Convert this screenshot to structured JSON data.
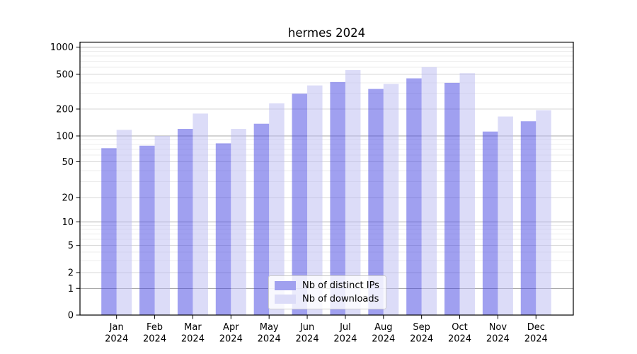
{
  "chart_data": {
    "type": "bar",
    "title": "hermes 2024",
    "categories": [
      "Jan 2024",
      "Feb 2024",
      "Mar 2024",
      "Apr 2024",
      "May 2024",
      "Jun 2024",
      "Jul 2024",
      "Aug 2024",
      "Sep 2024",
      "Oct 2024",
      "Nov 2024",
      "Dec 2024"
    ],
    "series": [
      {
        "name": "Nb of distinct IPs",
        "color": "#a0a0ef",
        "values": [
          72,
          77,
          120,
          82,
          137,
          300,
          408,
          340,
          450,
          400,
          112,
          146
        ]
      },
      {
        "name": "Nb of downloads",
        "color": "#dcdcf8",
        "values": [
          117,
          100,
          178,
          120,
          232,
          373,
          557,
          388,
          600,
          515,
          165,
          194
        ]
      }
    ],
    "xlabel": "",
    "ylabel": "",
    "yscale": "symlog (linear 0-1, logarithmic above 1)",
    "y_ticks": [
      0,
      1,
      2,
      5,
      10,
      20,
      50,
      100,
      200,
      500,
      1000
    ],
    "ylim": [
      0,
      1140
    ],
    "grid": "horizontal major + log minor gridlines",
    "legend": {
      "position": "lower center",
      "labels": [
        "Nb of distinct IPs",
        "Nb of downloads"
      ]
    }
  }
}
